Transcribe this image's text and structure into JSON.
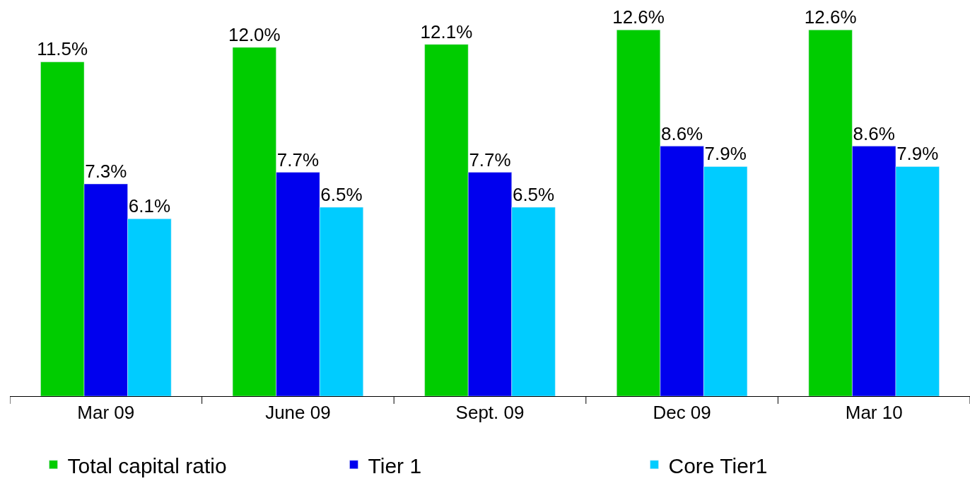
{
  "chart_data": {
    "type": "bar",
    "categories": [
      "Mar 09",
      "June 09",
      "Sept. 09",
      "Dec 09",
      "Mar 10"
    ],
    "series": [
      {
        "name": "Total capital ratio",
        "color": "#00cc00",
        "values": [
          11.5,
          12.0,
          12.1,
          12.6,
          12.6
        ],
        "value_labels": [
          "11.5%",
          "12.0%",
          "12.1%",
          "12.6%",
          "12.6%"
        ]
      },
      {
        "name": "Tier 1",
        "color": "#0000ee",
        "values": [
          7.3,
          7.7,
          7.7,
          8.6,
          8.6
        ],
        "value_labels": [
          "7.3%",
          "7.7%",
          "7.7%",
          "8.6%",
          "8.6%"
        ]
      },
      {
        "name": "Core Tier1",
        "color": "#00ccff",
        "values": [
          6.1,
          6.5,
          6.5,
          7.9,
          7.9
        ],
        "value_labels": [
          "6.1%",
          "6.5%",
          "6.5%",
          "7.9%",
          "7.9%"
        ]
      }
    ],
    "tick_labels": "x",
    "legend": "bottom"
  }
}
